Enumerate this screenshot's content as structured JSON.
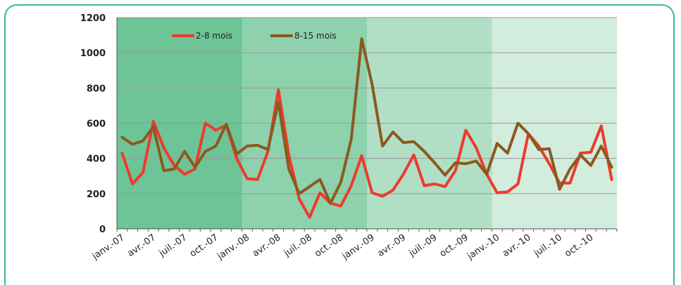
{
  "chart_data": {
    "type": "line",
    "xlabel": "",
    "ylabel": "",
    "ylim": [
      0,
      1200
    ],
    "yticks": [
      0,
      200,
      400,
      600,
      800,
      1000,
      1200
    ],
    "grid": true,
    "legend_position": "top-left",
    "background_bands": [
      "#6cc497",
      "#8ed1ad",
      "#b1dfc6",
      "#d2ecdd"
    ],
    "x": [
      "janv.-07",
      "févr.-07",
      "mars-07",
      "avr.-07",
      "mai-07",
      "juin-07",
      "juil.-07",
      "août-07",
      "sept.-07",
      "oct.-07",
      "nov.-07",
      "déc.-07",
      "janv.-08",
      "févr.-08",
      "mars-08",
      "avr.-08",
      "mai-08",
      "juin-08",
      "juil.-08",
      "août-08",
      "sept.-08",
      "oct.-08",
      "nov.-08",
      "déc.-08",
      "janv.-09",
      "févr.-09",
      "mars-09",
      "avr.-09",
      "mai-09",
      "juin-09",
      "juil.-09",
      "août-09",
      "sept.-09",
      "oct.-09",
      "nov.-09",
      "déc.-09",
      "janv.-10",
      "févr.-10",
      "mars-10",
      "avr.-10",
      "mai-10",
      "juin-10",
      "juil.-10",
      "août-10",
      "sept.-10",
      "oct.-10",
      "nov.-10",
      "déc.-10"
    ],
    "tick_labels": [
      "janv.-07",
      "avr.-07",
      "juil.-07",
      "oct.-07",
      "janv.-08",
      "avr.-08",
      "juil.-08",
      "oct.-08",
      "janv.-09",
      "avr.-09",
      "juil.-09",
      "oct.-09",
      "janv.-10",
      "avr.-10",
      "juil.-10",
      "oct.-10"
    ],
    "series": [
      {
        "name": "2-8 mois",
        "color": "#ee3a2e",
        "values": [
          430,
          255,
          320,
          610,
          460,
          360,
          310,
          340,
          600,
          560,
          590,
          400,
          285,
          280,
          440,
          790,
          420,
          170,
          65,
          205,
          145,
          130,
          245,
          415,
          205,
          185,
          220,
          310,
          420,
          245,
          255,
          240,
          330,
          560,
          460,
          310,
          205,
          210,
          255,
          540,
          470,
          370,
          260,
          260,
          430,
          435,
          585,
          280
        ]
      },
      {
        "name": "8-15 mois",
        "color": "#8a5a1e",
        "values": [
          520,
          480,
          500,
          580,
          330,
          340,
          440,
          350,
          440,
          470,
          595,
          425,
          470,
          475,
          450,
          720,
          340,
          200,
          240,
          280,
          145,
          265,
          510,
          1080,
          820,
          470,
          550,
          490,
          495,
          440,
          375,
          305,
          375,
          370,
          385,
          310,
          485,
          430,
          600,
          540,
          450,
          455,
          225,
          340,
          420,
          360,
          470,
          350
        ]
      }
    ]
  }
}
